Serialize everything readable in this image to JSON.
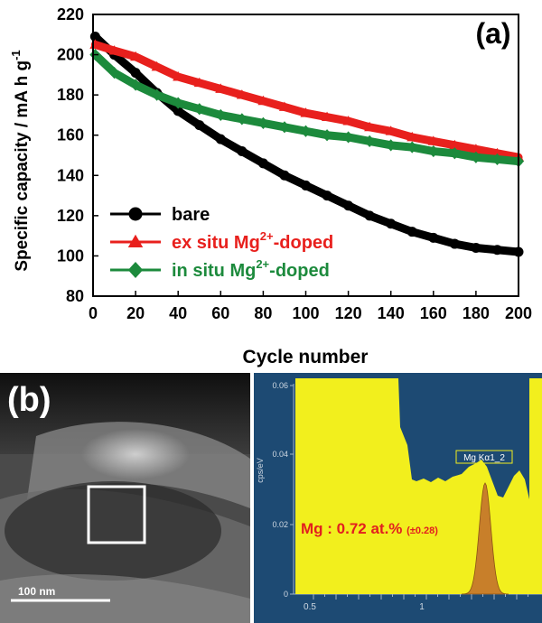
{
  "chart_data": [
    {
      "type": "line",
      "panel_label": "(a)",
      "xlabel": "Cycle number",
      "ylabel": "Specific capacity / mA h g",
      "ylabel_sup": "-1",
      "xlim": [
        0,
        200
      ],
      "ylim": [
        80,
        220
      ],
      "xticks": [
        0,
        20,
        40,
        60,
        80,
        100,
        120,
        140,
        160,
        180,
        200
      ],
      "yticks": [
        80,
        100,
        120,
        140,
        160,
        180,
        200,
        220
      ],
      "grid": false,
      "legend_position": "lower-left",
      "series": [
        {
          "name": "bare",
          "legend_parts": [
            "bare"
          ],
          "color": "#000000",
          "marker": "circle",
          "x": [
            1,
            10,
            20,
            30,
            40,
            50,
            60,
            70,
            80,
            90,
            100,
            110,
            120,
            130,
            140,
            150,
            160,
            170,
            180,
            190,
            200
          ],
          "y": [
            209,
            200,
            191,
            181,
            172,
            165,
            158,
            152,
            146,
            140,
            135,
            130,
            125,
            120,
            116,
            112,
            109,
            106,
            104,
            103,
            102
          ]
        },
        {
          "name": "ex situ Mg2+-doped",
          "legend_parts": [
            "ex situ Mg",
            "2+",
            "-doped"
          ],
          "color": "#e8201d",
          "marker": "triangle",
          "x": [
            1,
            10,
            20,
            30,
            40,
            50,
            60,
            70,
            80,
            90,
            100,
            110,
            120,
            130,
            140,
            150,
            160,
            170,
            180,
            190,
            200
          ],
          "y": [
            205,
            202,
            199,
            194,
            189,
            186,
            183,
            180,
            177,
            174,
            171,
            169,
            167,
            164,
            162,
            159,
            157,
            155,
            153,
            151,
            149
          ]
        },
        {
          "name": "in situ Mg2+-doped",
          "legend_parts": [
            "in situ Mg",
            "2+",
            "-doped"
          ],
          "color": "#1c8a3c",
          "marker": "diamond",
          "x": [
            1,
            10,
            20,
            30,
            40,
            50,
            60,
            70,
            80,
            90,
            100,
            110,
            120,
            130,
            140,
            150,
            160,
            170,
            180,
            190,
            200
          ],
          "y": [
            200,
            191,
            185,
            180,
            176,
            173,
            170,
            168,
            166,
            164,
            162,
            160,
            159,
            157,
            155,
            154,
            152,
            151,
            149,
            148,
            147
          ]
        }
      ]
    },
    {
      "type": "area",
      "ylabel": "cps/eV",
      "xticks": [
        "0.5",
        "1"
      ],
      "yticks": [
        "0",
        "0.02",
        "0.04",
        "0.06"
      ],
      "peak_label": "Mg Kα1_2",
      "peak_center_keV": 1.254,
      "annotation": "Mg : 0.72 at.%",
      "annotation_error": "(±0.28)"
    }
  ],
  "panel_b": {
    "label": "(b)",
    "scale_bar_text": "100 nm"
  },
  "colors": {
    "spectrum_background": "#1d4a73",
    "spectrum_fill": "#f2ef1d",
    "peak_fill": "#c87f2a",
    "annotation_text": "#e21f1f"
  }
}
